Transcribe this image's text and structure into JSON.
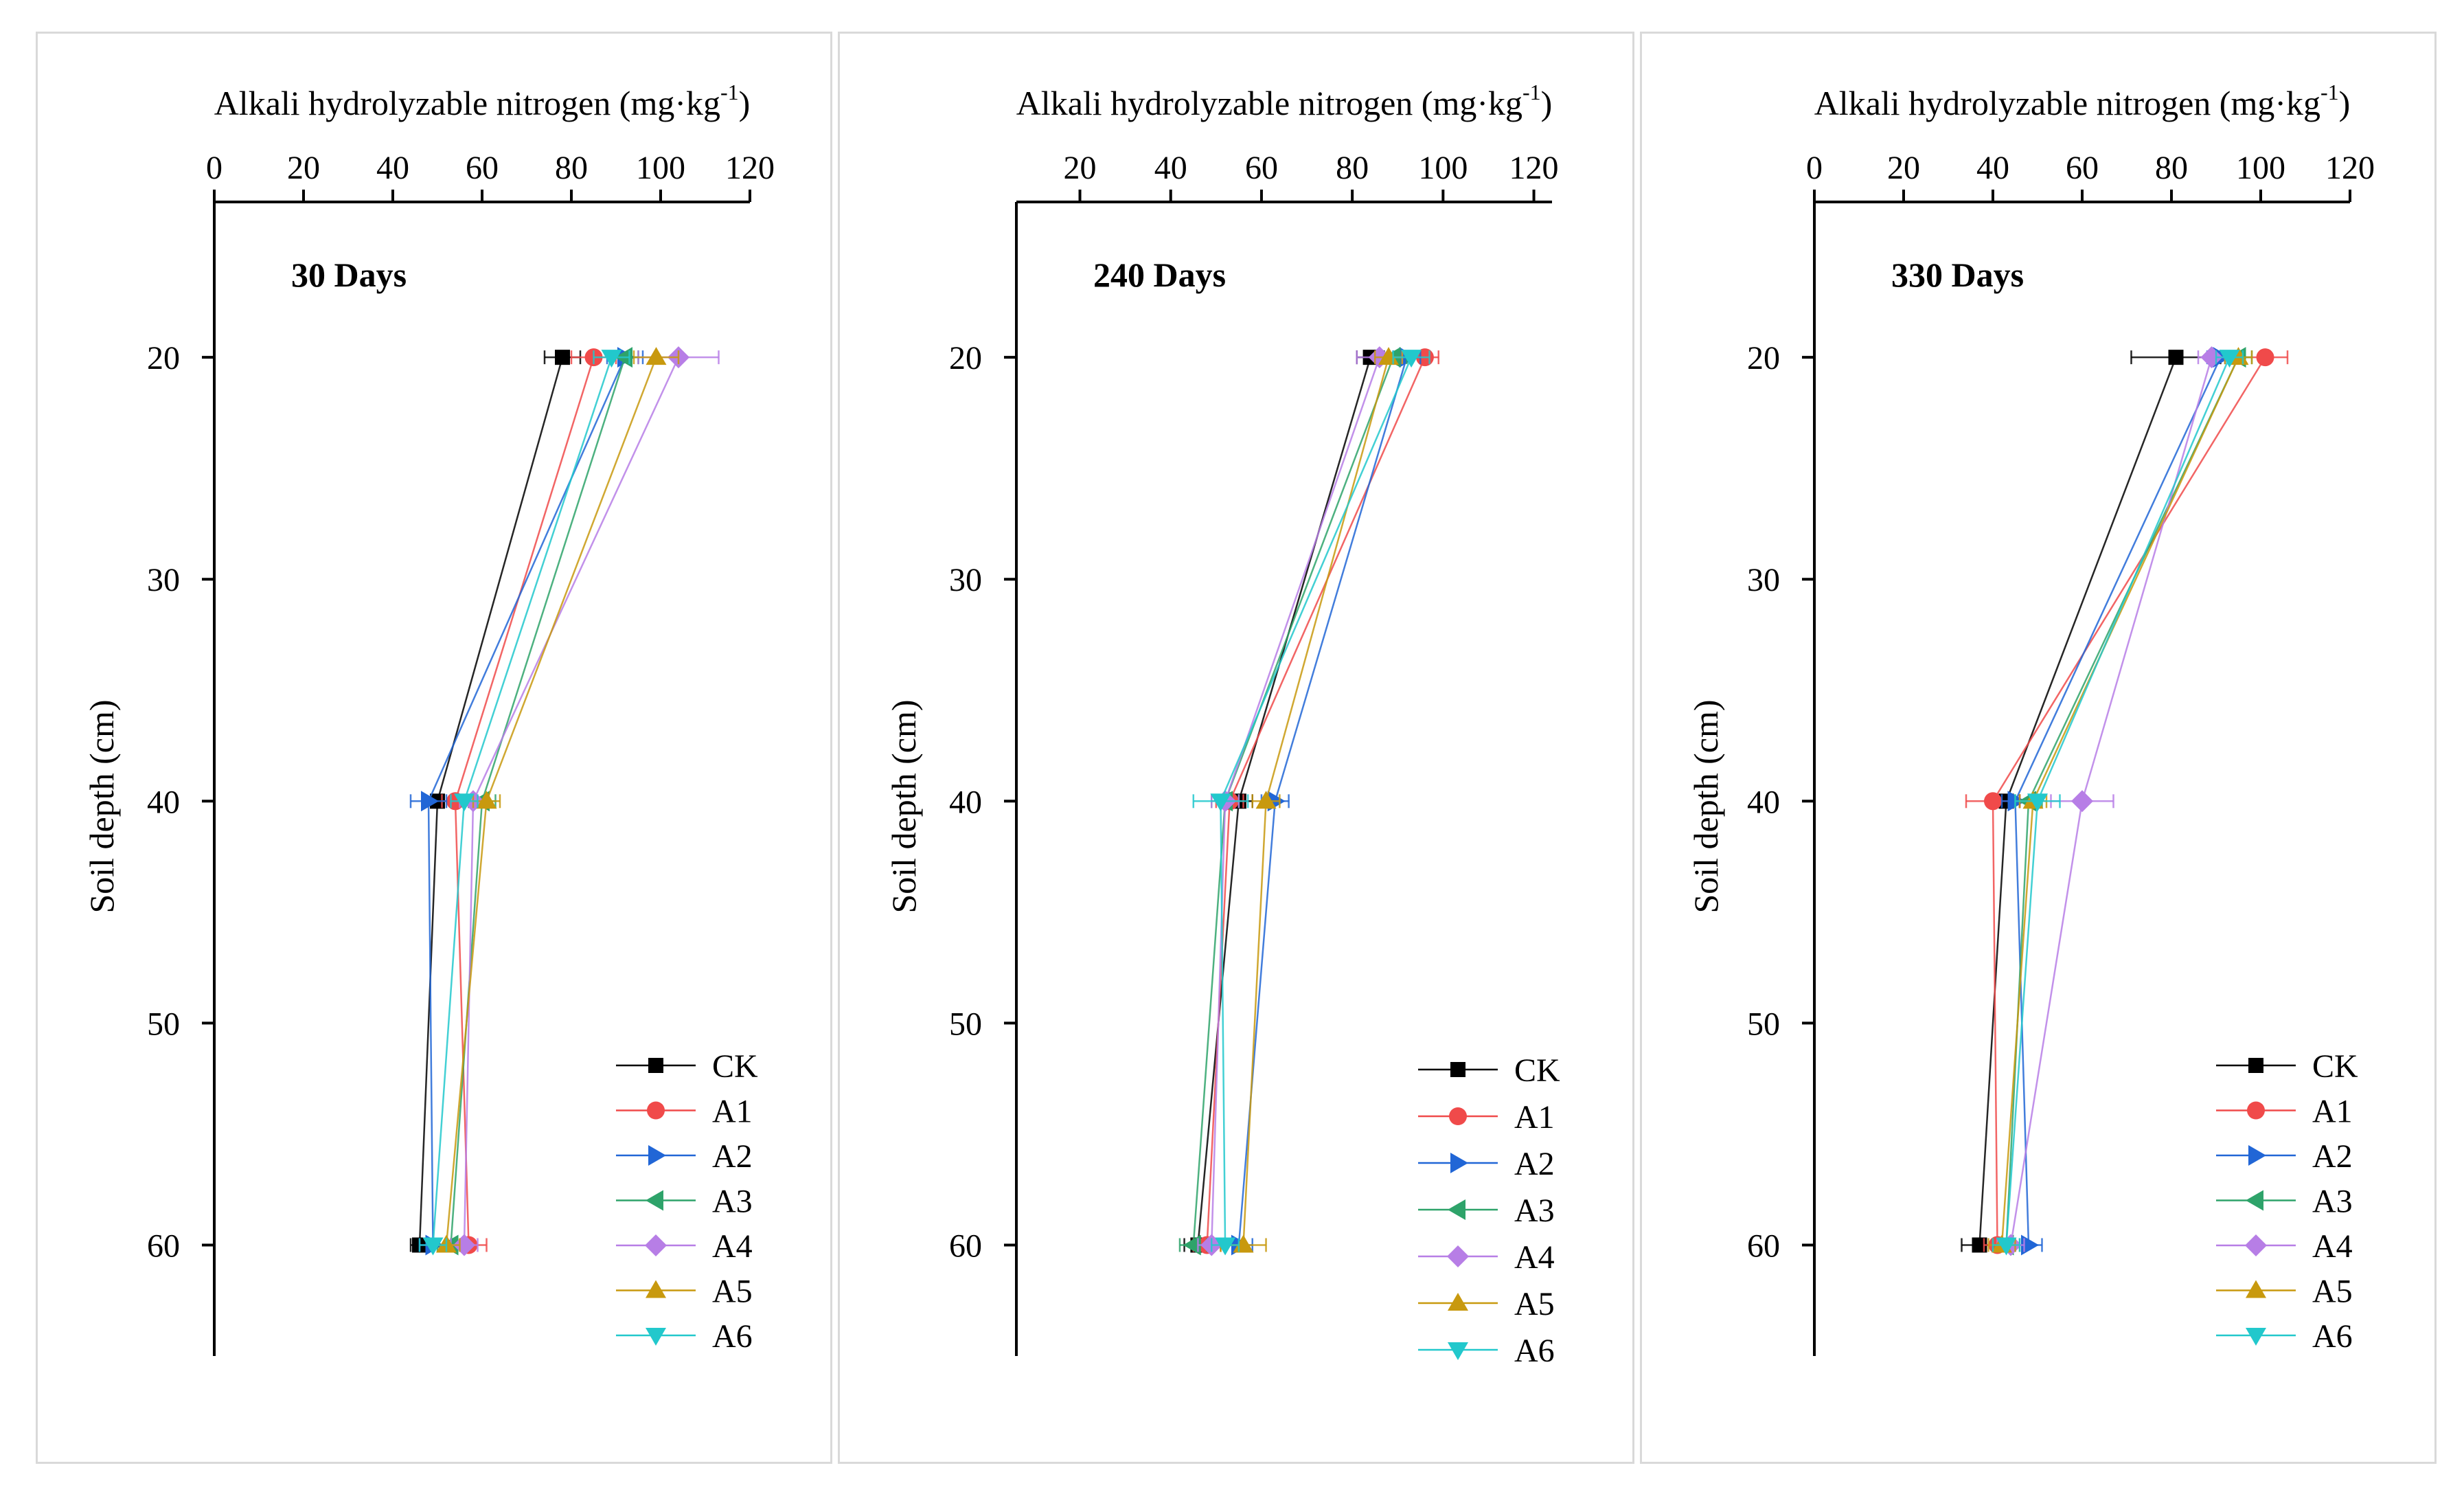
{
  "colors": {
    "CK": "#000000",
    "A1": "#f04a4a",
    "A2": "#2166d6",
    "A3": "#2ea36a",
    "A4": "#b77ee6",
    "A5": "#c8990e",
    "A6": "#22c8cc"
  },
  "chart_data": [
    {
      "type": "line",
      "title": "30 Days",
      "xlabel": "Alkali hydrolyzable nitrogen (mg·kg⁻¹)",
      "ylabel": "Soil depth (cm)",
      "xlim": [
        0,
        120
      ],
      "xticks": [
        "0",
        "20",
        "40",
        "60",
        "80",
        "100",
        "120"
      ],
      "ylim": [
        65,
        13
      ],
      "yticks": [
        "20",
        "30",
        "40",
        "50",
        "60"
      ],
      "y": [
        20,
        40,
        60
      ],
      "legend_position": "bottom-right",
      "series": [
        {
          "name": "CK",
          "values": [
            78,
            50,
            46
          ],
          "err": [
            4,
            3,
            2
          ]
        },
        {
          "name": "A1",
          "values": [
            85,
            54,
            57
          ],
          "err": [
            5,
            3,
            4
          ]
        },
        {
          "name": "A2",
          "values": [
            92,
            48,
            49
          ],
          "err": [
            4,
            4,
            3
          ]
        },
        {
          "name": "A3",
          "values": [
            92,
            60,
            53
          ],
          "err": [
            3,
            3,
            3
          ]
        },
        {
          "name": "A4",
          "values": [
            104,
            58,
            56
          ],
          "err": [
            9,
            3,
            3
          ]
        },
        {
          "name": "A5",
          "values": [
            99,
            61,
            52
          ],
          "err": [
            5,
            3,
            3
          ]
        },
        {
          "name": "A6",
          "values": [
            89,
            56,
            49
          ],
          "err": [
            4,
            3,
            3
          ]
        }
      ]
    },
    {
      "type": "line",
      "title": "240 Days",
      "xlabel": "Alkali hydrolyzable nitrogen (mg·kg⁻¹)",
      "ylabel": "Soil depth (cm)",
      "xlim": [
        6,
        124
      ],
      "xticks": [
        "20",
        "40",
        "60",
        "80",
        "100",
        "120"
      ],
      "ylim": [
        65,
        13
      ],
      "yticks": [
        "20",
        "30",
        "40",
        "50",
        "60"
      ],
      "y": [
        20,
        40,
        60
      ],
      "legend_position": "bottom-right",
      "series": [
        {
          "name": "CK",
          "values": [
            84,
            55,
            46
          ],
          "err": [
            3,
            3,
            3
          ]
        },
        {
          "name": "A1",
          "values": [
            96,
            53,
            48
          ],
          "err": [
            3,
            3,
            3
          ]
        },
        {
          "name": "A2",
          "values": [
            92,
            63,
            55
          ],
          "err": [
            3,
            3,
            3
          ]
        },
        {
          "name": "A3",
          "values": [
            89,
            52,
            45
          ],
          "err": [
            3,
            3,
            3
          ]
        },
        {
          "name": "A4",
          "values": [
            86,
            52,
            49
          ],
          "err": [
            5,
            3,
            3
          ]
        },
        {
          "name": "A5",
          "values": [
            88,
            61,
            56
          ],
          "err": [
            3,
            3,
            5
          ]
        },
        {
          "name": "A6",
          "values": [
            93,
            51,
            52
          ],
          "err": [
            4,
            6,
            3
          ]
        }
      ]
    },
    {
      "type": "line",
      "title": "330 Days",
      "xlabel": "Alkali hydrolyzable nitrogen (mg·kg⁻¹)",
      "ylabel": "Soil depth (cm)",
      "xlim": [
        0,
        120
      ],
      "xticks": [
        "0",
        "20",
        "40",
        "60",
        "80",
        "100",
        "120"
      ],
      "ylim": [
        65,
        13
      ],
      "yticks": [
        "20",
        "30",
        "40",
        "50",
        "60"
      ],
      "y": [
        20,
        40,
        60
      ],
      "legend_position": "bottom-right",
      "series": [
        {
          "name": "CK",
          "values": [
            81,
            43,
            37
          ],
          "err": [
            10,
            3,
            4
          ]
        },
        {
          "name": "A1",
          "values": [
            101,
            40,
            41
          ],
          "err": [
            5,
            6,
            3
          ]
        },
        {
          "name": "A2",
          "values": [
            91,
            45,
            48
          ],
          "err": [
            3,
            3,
            3
          ]
        },
        {
          "name": "A3",
          "values": [
            95,
            48,
            43
          ],
          "err": [
            3,
            3,
            3
          ]
        },
        {
          "name": "A4",
          "values": [
            89,
            60,
            44
          ],
          "err": [
            3,
            7,
            3
          ]
        },
        {
          "name": "A5",
          "values": [
            95,
            49,
            42
          ],
          "err": [
            3,
            3,
            3
          ]
        },
        {
          "name": "A6",
          "values": [
            93,
            50,
            43
          ],
          "err": [
            3,
            5,
            3
          ]
        }
      ]
    }
  ]
}
